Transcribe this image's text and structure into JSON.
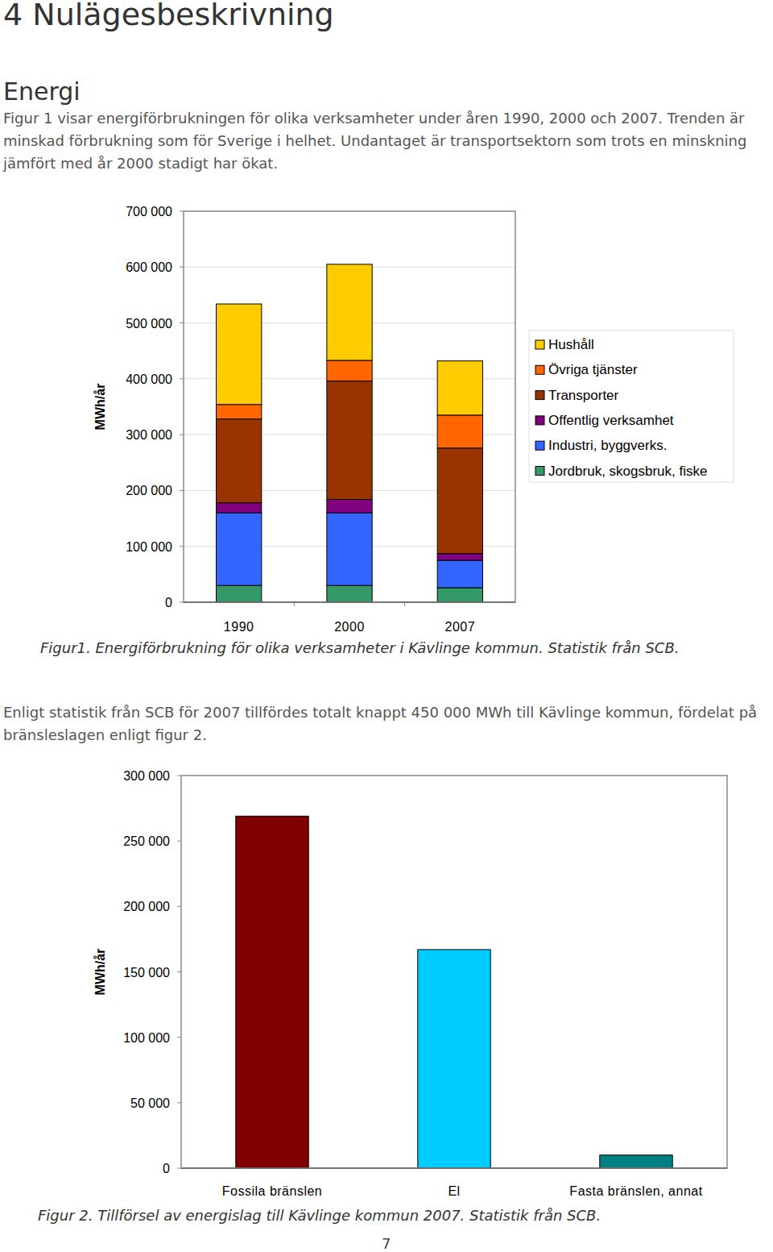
{
  "heading": "4 Nulägesbeskrivning",
  "section_title": "Energi",
  "paragraphs": [
    "Figur 1 visar energiförbrukningen för olika verksamheter under åren 1990, 2000 och 2007. Trenden är minskad förbrukning som för Sverige i helhet. Undantaget är transportsektorn som trots en minskning jämfört med år 2000 stadigt har ökat.",
    "Enligt statistik från SCB för 2007 tillfördes totalt knappt 450 000 MWh till Kävlinge kommun, fördelat på bränsleslagen enligt figur 2."
  ],
  "captions": [
    "Figur1. Energiförbrukning för olika verksamheter i Kävlinge kommun. Statistik från SCB.",
    "Figur 2. Tillförsel av energislag till Kävlinge kommun 2007. Statistik från SCB."
  ],
  "page_number": 7,
  "chart_data": [
    {
      "type": "bar",
      "stacked": true,
      "ylabel": "MWh/år",
      "categories": [
        "1990",
        "2000",
        "2007"
      ],
      "series": [
        {
          "name": "Jordbruk, skogsbruk, fiske",
          "color": "#339966",
          "values": [
            30000,
            30000,
            26000
          ]
        },
        {
          "name": "Industri, byggverks.",
          "color": "#3366ff",
          "values": [
            130000,
            130000,
            49000
          ]
        },
        {
          "name": "Offentlig verksamhet",
          "color": "#800080",
          "values": [
            18000,
            24000,
            12000
          ]
        },
        {
          "name": "Transporter",
          "color": "#993300",
          "values": [
            150000,
            212000,
            189000
          ]
        },
        {
          "name": "Övriga tjänster",
          "color": "#ff6600",
          "values": [
            26000,
            37000,
            59000
          ]
        },
        {
          "name": "Hushåll",
          "color": "#ffcc00",
          "values": [
            180000,
            172000,
            97000
          ]
        }
      ],
      "ylim": [
        0,
        700000
      ],
      "yticks": [
        0,
        {
          "value": 100000,
          "label": "100 000"
        },
        {
          "value": 200000,
          "label": "200 000"
        },
        {
          "value": 300000,
          "label": "300 000"
        },
        {
          "value": 400000,
          "label": "400 000"
        },
        {
          "value": 500000,
          "label": "500 000"
        },
        {
          "value": 600000,
          "label": "600 000"
        },
        {
          "value": 700000,
          "label": "700 000"
        }
      ],
      "grid": true,
      "legend": "right"
    },
    {
      "type": "bar",
      "ylabel": "MWh/år",
      "categories": [
        "Fossila bränslen",
        "El",
        "Fasta bränslen, annat"
      ],
      "values": [
        269000,
        167000,
        10000
      ],
      "colors": [
        "#800000",
        "#00ccff",
        "#008080"
      ],
      "ylim": [
        0,
        300000
      ],
      "yticks": [
        0,
        {
          "value": 50000,
          "label": "50 000"
        },
        {
          "value": 100000,
          "label": "100 000"
        },
        {
          "value": 150000,
          "label": "150 000"
        },
        {
          "value": 200000,
          "label": "200 000"
        },
        {
          "value": 250000,
          "label": "250 000"
        },
        {
          "value": 300000,
          "label": "300 000"
        }
      ],
      "grid": false
    }
  ]
}
